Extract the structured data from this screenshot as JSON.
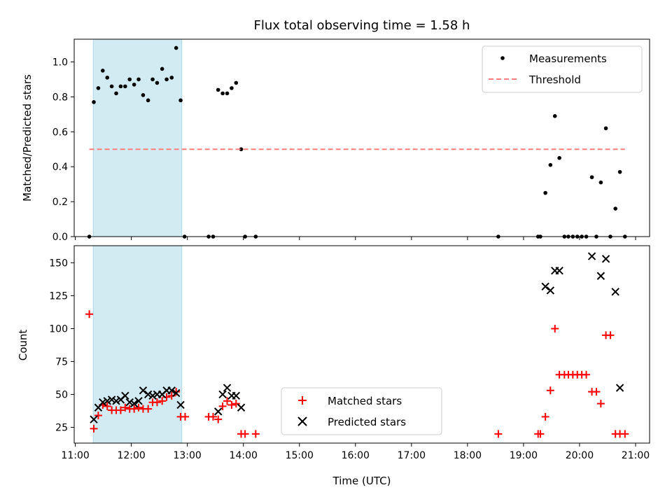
{
  "chart_data": {
    "title": "Flux total observing time = 1.58 h",
    "x_axis": {
      "label": "Time (UTC)",
      "unit": "hours UTC",
      "range": [
        10.98,
        21.25
      ],
      "ticks": [
        11,
        12,
        13,
        14,
        15,
        16,
        17,
        18,
        19,
        20,
        21
      ],
      "tick_labels": [
        "11:00",
        "12:00",
        "13:00",
        "14:00",
        "15:00",
        "16:00",
        "17:00",
        "18:00",
        "19:00",
        "20:00",
        "21:00"
      ]
    },
    "shaded_interval": [
      11.32,
      12.9
    ],
    "colors": {
      "shade": "#add8e6",
      "threshold": "#ff7f7f",
      "matched": "#ff0000",
      "predicted": "#000000",
      "measurements": "#000000"
    },
    "panels": [
      {
        "type": "scatter",
        "ylabel": "Matched/Predicted stars",
        "ylim": [
          0,
          1.13
        ],
        "yticks": [
          0.0,
          0.2,
          0.4,
          0.6,
          0.8,
          1.0
        ],
        "ytick_labels": [
          "0.0",
          "0.2",
          "0.4",
          "0.6",
          "0.8",
          "1.0"
        ],
        "legend": {
          "position": "top-right"
        },
        "series": [
          {
            "name": "Measurements",
            "marker": "dot",
            "points": [
              [
                11.25,
                0.0
              ],
              [
                11.33,
                0.77
              ],
              [
                11.41,
                0.85
              ],
              [
                11.49,
                0.95
              ],
              [
                11.57,
                0.91
              ],
              [
                11.65,
                0.86
              ],
              [
                11.73,
                0.82
              ],
              [
                11.81,
                0.86
              ],
              [
                11.89,
                0.86
              ],
              [
                11.97,
                0.9
              ],
              [
                12.05,
                0.87
              ],
              [
                12.13,
                0.9
              ],
              [
                12.21,
                0.81
              ],
              [
                12.3,
                0.78
              ],
              [
                12.38,
                0.9
              ],
              [
                12.46,
                0.88
              ],
              [
                12.55,
                0.96
              ],
              [
                12.63,
                0.9
              ],
              [
                12.72,
                0.91
              ],
              [
                12.8,
                1.08
              ],
              [
                12.88,
                0.78
              ],
              [
                12.95,
                0.0
              ],
              [
                13.38,
                0.0
              ],
              [
                13.46,
                0.0
              ],
              [
                13.55,
                0.84
              ],
              [
                13.63,
                0.82
              ],
              [
                13.71,
                0.82
              ],
              [
                13.79,
                0.85
              ],
              [
                13.87,
                0.88
              ],
              [
                13.96,
                0.5
              ],
              [
                14.03,
                0.0
              ],
              [
                14.22,
                0.0
              ],
              [
                18.55,
                0.0
              ],
              [
                19.26,
                0.0
              ],
              [
                19.3,
                0.0
              ],
              [
                19.39,
                0.25
              ],
              [
                19.48,
                0.41
              ],
              [
                19.56,
                0.69
              ],
              [
                19.64,
                0.45
              ],
              [
                19.73,
                0.0
              ],
              [
                19.8,
                0.0
              ],
              [
                19.88,
                0.0
              ],
              [
                19.96,
                0.0
              ],
              [
                20.04,
                0.0
              ],
              [
                20.12,
                0.0
              ],
              [
                20.22,
                0.34
              ],
              [
                20.3,
                0.0
              ],
              [
                20.38,
                0.31
              ],
              [
                20.47,
                0.62
              ],
              [
                20.55,
                0.0
              ],
              [
                20.64,
                0.16
              ],
              [
                20.72,
                0.37
              ],
              [
                20.81,
                0.0
              ]
            ]
          },
          {
            "name": "Threshold",
            "style": "dashed-line",
            "x": [
              11.25,
              20.81
            ],
            "y": [
              0.5,
              0.5
            ]
          }
        ]
      },
      {
        "type": "scatter",
        "ylabel": "Count",
        "ylim": [
          13,
          163
        ],
        "yticks": [
          25,
          50,
          75,
          100,
          125,
          150
        ],
        "ytick_labels": [
          "25",
          "50",
          "75",
          "100",
          "125",
          "150"
        ],
        "legend": {
          "position": "bottom-center"
        },
        "series": [
          {
            "name": "Matched stars",
            "marker": "plus",
            "points": [
              [
                11.25,
                111
              ],
              [
                11.33,
                24
              ],
              [
                11.41,
                34
              ],
              [
                11.49,
                42
              ],
              [
                11.57,
                41
              ],
              [
                11.65,
                38
              ],
              [
                11.73,
                38
              ],
              [
                11.81,
                38
              ],
              [
                11.89,
                40
              ],
              [
                11.97,
                39
              ],
              [
                12.05,
                39
              ],
              [
                12.13,
                40
              ],
              [
                12.21,
                39
              ],
              [
                12.3,
                39
              ],
              [
                12.38,
                44
              ],
              [
                12.46,
                44
              ],
              [
                12.55,
                45
              ],
              [
                12.63,
                48
              ],
              [
                12.72,
                49
              ],
              [
                12.8,
                52
              ],
              [
                12.88,
                33
              ],
              [
                12.96,
                33
              ],
              [
                13.38,
                33
              ],
              [
                13.46,
                33
              ],
              [
                13.55,
                31
              ],
              [
                13.63,
                41
              ],
              [
                13.71,
                45
              ],
              [
                13.79,
                42
              ],
              [
                13.87,
                43
              ],
              [
                13.96,
                20
              ],
              [
                14.03,
                20
              ],
              [
                14.22,
                20
              ],
              [
                18.55,
                20
              ],
              [
                19.26,
                20
              ],
              [
                19.3,
                20
              ],
              [
                19.39,
                33
              ],
              [
                19.48,
                53
              ],
              [
                19.56,
                100
              ],
              [
                19.64,
                65
              ],
              [
                19.73,
                65
              ],
              [
                19.8,
                65
              ],
              [
                19.88,
                65
              ],
              [
                19.96,
                65
              ],
              [
                20.04,
                65
              ],
              [
                20.12,
                65
              ],
              [
                20.22,
                52
              ],
              [
                20.3,
                52
              ],
              [
                20.38,
                43
              ],
              [
                20.47,
                95
              ],
              [
                20.55,
                95
              ],
              [
                20.64,
                20
              ],
              [
                20.72,
                20
              ],
              [
                20.81,
                20
              ]
            ]
          },
          {
            "name": "Predicted stars",
            "marker": "x",
            "points": [
              [
                11.33,
                31
              ],
              [
                11.41,
                40
              ],
              [
                11.49,
                44
              ],
              [
                11.57,
                45
              ],
              [
                11.65,
                46
              ],
              [
                11.73,
                45
              ],
              [
                11.81,
                46
              ],
              [
                11.89,
                49
              ],
              [
                11.97,
                44
              ],
              [
                12.05,
                43
              ],
              [
                12.13,
                45
              ],
              [
                12.21,
                53
              ],
              [
                12.3,
                50
              ],
              [
                12.38,
                49
              ],
              [
                12.46,
                50
              ],
              [
                12.55,
                50
              ],
              [
                12.63,
                53
              ],
              [
                12.72,
                53
              ],
              [
                12.8,
                51
              ],
              [
                12.88,
                42
              ],
              [
                13.55,
                37
              ],
              [
                13.63,
                50
              ],
              [
                13.71,
                55
              ],
              [
                13.79,
                49
              ],
              [
                13.87,
                49
              ],
              [
                13.96,
                40
              ],
              [
                19.39,
                132
              ],
              [
                19.48,
                129
              ],
              [
                19.56,
                144
              ],
              [
                19.64,
                144
              ],
              [
                20.22,
                155
              ],
              [
                20.38,
                140
              ],
              [
                20.47,
                153
              ],
              [
                20.64,
                128
              ],
              [
                20.72,
                55
              ]
            ]
          }
        ]
      }
    ]
  }
}
